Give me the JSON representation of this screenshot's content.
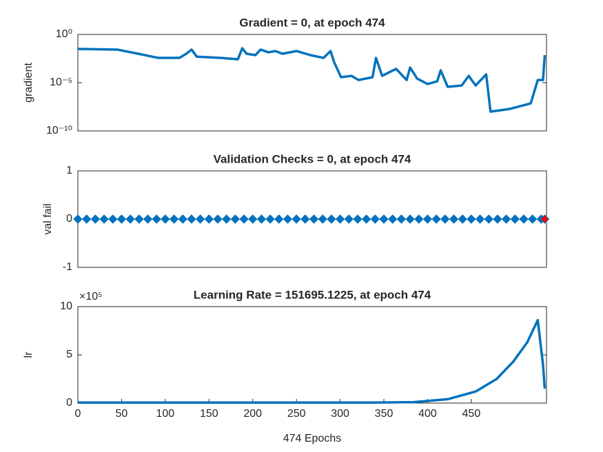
{
  "chart_data": [
    {
      "type": "line",
      "title": "Gradient = 0, at epoch 474",
      "ylabel": "gradient",
      "yscale": "log",
      "xlim": [
        0,
        536
      ],
      "ylim": [
        1e-10,
        1
      ],
      "yticks": [
        {
          "value": 1,
          "label": "10⁰"
        },
        {
          "value": 1e-05,
          "label": "10⁻⁵"
        },
        {
          "value": 1e-10,
          "label": "10⁻¹⁰"
        }
      ],
      "x": [
        0,
        45,
        69,
        92,
        116,
        124,
        130,
        136,
        163,
        183,
        188,
        193,
        203,
        209,
        218,
        226,
        234,
        250,
        266,
        281,
        289,
        293,
        301,
        313,
        321,
        337,
        341,
        348,
        364,
        376,
        380,
        388,
        400,
        411,
        415,
        423,
        439,
        447,
        455,
        467,
        472,
        494,
        518,
        526,
        532,
        534
      ],
      "series": [
        {
          "color": "#0072bd",
          "values": [
            0.0316,
            0.027,
            0.01,
            0.0037,
            0.0037,
            0.01,
            0.027,
            0.005,
            0.0037,
            0.0027,
            0.037,
            0.01,
            0.0072,
            0.027,
            0.014,
            0.019,
            0.01,
            0.019,
            0.0072,
            0.0037,
            0.019,
            0.0014,
            3.7e-05,
            5.1e-05,
            1.9e-05,
            3.7e-05,
            0.0037,
            5.1e-05,
            0.00027,
            1.9e-05,
            0.00037,
            2.7e-05,
            7.2e-06,
            1.4e-05,
            0.00019,
            3.7e-06,
            5.1e-06,
            5.1e-05,
            5.1e-06,
            7.2e-05,
            1e-08,
            1.9e-08,
            7.2e-08,
            1.9e-05,
            1.9e-05,
            0.0072
          ]
        }
      ]
    },
    {
      "type": "line",
      "title": "Validation Checks = 0, at epoch 474",
      "ylabel": "val fail",
      "xlim": [
        0,
        536
      ],
      "ylim": [
        -1,
        1
      ],
      "yticks": [
        -1,
        0,
        1
      ],
      "series": [
        {
          "color": "#0072bd",
          "marker": "diamond",
          "x": [
            0,
            10,
            20,
            30,
            40,
            50,
            60,
            70,
            80,
            90,
            100,
            110,
            120,
            130,
            140,
            150,
            160,
            170,
            180,
            190,
            200,
            210,
            220,
            230,
            240,
            250,
            260,
            270,
            280,
            290,
            300,
            310,
            320,
            330,
            340,
            350,
            360,
            370,
            380,
            390,
            400,
            410,
            420,
            430,
            440,
            450,
            460,
            470,
            480,
            490,
            500,
            510,
            520,
            530
          ],
          "values": [
            0,
            0,
            0,
            0,
            0,
            0,
            0,
            0,
            0,
            0,
            0,
            0,
            0,
            0,
            0,
            0,
            0,
            0,
            0,
            0,
            0,
            0,
            0,
            0,
            0,
            0,
            0,
            0,
            0,
            0,
            0,
            0,
            0,
            0,
            0,
            0,
            0,
            0,
            0,
            0,
            0,
            0,
            0,
            0,
            0,
            0,
            0,
            0,
            0,
            0,
            0,
            0,
            0,
            0
          ]
        },
        {
          "color": "#ff0000",
          "marker": "diamond",
          "x": [
            534
          ],
          "values": [
            0
          ]
        }
      ]
    },
    {
      "type": "line",
      "title": "Learning Rate = 151695.1225, at epoch 474",
      "ylabel": "lr",
      "xlabel": "474 Epochs",
      "annotation": "×10⁵",
      "xlim": [
        0,
        536
      ],
      "ylim": [
        0,
        10
      ],
      "yticks": [
        0,
        5,
        10
      ],
      "xticks": [
        0,
        50,
        100,
        150,
        200,
        250,
        300,
        350,
        400,
        450
      ],
      "x": [
        0,
        200,
        337,
        384,
        423,
        455,
        479,
        498,
        514,
        526,
        532,
        534
      ],
      "series": [
        {
          "color": "#0072bd",
          "values": [
            0.05,
            0.05,
            0.05,
            0.1,
            0.4,
            1.2,
            2.5,
            4.3,
            6.3,
            8.6,
            4,
            1.5
          ]
        }
      ]
    }
  ]
}
